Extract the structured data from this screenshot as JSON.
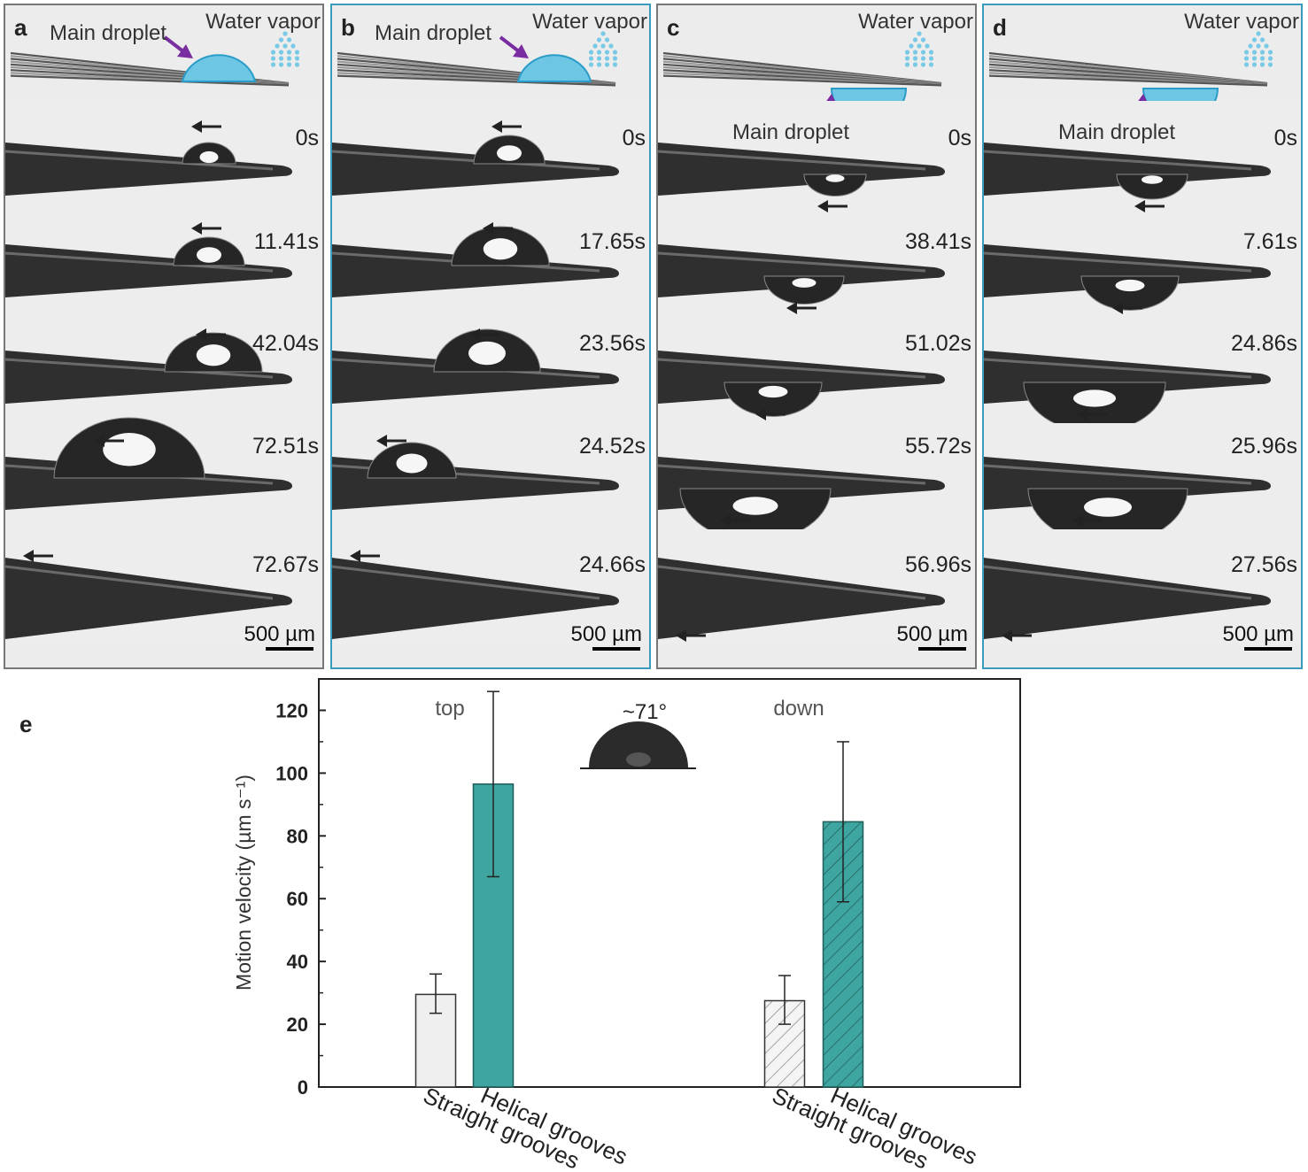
{
  "panels": [
    {
      "letter": "a",
      "main_droplet": "Main droplet",
      "water_vapor": "Water vapor",
      "times": [
        "0s",
        "11.41s",
        "42.04s",
        "72.51s",
        "72.67s"
      ],
      "scale": "500 µm",
      "border": "#777777",
      "position": "top"
    },
    {
      "letter": "b",
      "main_droplet": "Main droplet",
      "water_vapor": "Water vapor",
      "times": [
        "0s",
        "17.65s",
        "23.56s",
        "24.52s",
        "24.66s"
      ],
      "scale": "500 µm",
      "border": "#3b9bbd",
      "position": "top"
    },
    {
      "letter": "c",
      "main_droplet": "Main droplet",
      "water_vapor": "Water vapor",
      "times": [
        "0s",
        "38.41s",
        "51.02s",
        "55.72s",
        "56.96s"
      ],
      "scale": "500 µm",
      "border": "#777777",
      "position": "down"
    },
    {
      "letter": "d",
      "main_droplet": "Main droplet",
      "water_vapor": "Water vapor",
      "times": [
        "0s",
        "7.61s",
        "24.86s",
        "25.96s",
        "27.56s"
      ],
      "scale": "500 µm",
      "border": "#3b9bbd",
      "position": "down"
    }
  ],
  "chart_data": {
    "type": "bar",
    "panel_label": "e",
    "ylabel": "Motion velocity (µm s⁻¹)",
    "ylim": [
      0,
      130
    ],
    "yticks": [
      0,
      20,
      40,
      60,
      80,
      100,
      120
    ],
    "groups": [
      "top",
      "down"
    ],
    "categories": [
      "Straight grooves",
      "Helical grooves"
    ],
    "series": [
      {
        "group": "top",
        "category": "Straight grooves",
        "value": 29.5,
        "err_low": 23.5,
        "err_high": 36,
        "fill": "#efefef",
        "hatch": false
      },
      {
        "group": "top",
        "category": "Helical grooves",
        "value": 96.5,
        "err_low": 67,
        "err_high": 126,
        "fill": "#3fa5a0",
        "hatch": false
      },
      {
        "group": "down",
        "category": "Straight grooves",
        "value": 27.5,
        "err_low": 20,
        "err_high": 35.5,
        "fill": "#f4f4f4",
        "hatch": true
      },
      {
        "group": "down",
        "category": "Helical grooves",
        "value": 84.5,
        "err_low": 59,
        "err_high": 110,
        "fill": "#3fa5a0",
        "hatch": true
      }
    ],
    "inset_label": "~71°",
    "grid": false
  }
}
